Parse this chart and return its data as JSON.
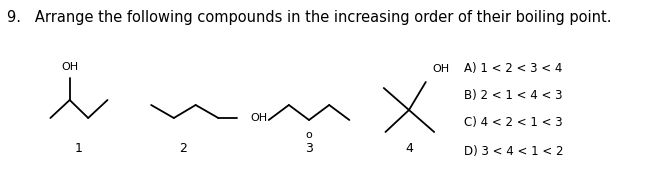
{
  "title": "9.   Arrange the following compounds in the increasing order of their boiling point.",
  "title_fontsize": 10.5,
  "bg_color": "#ffffff",
  "answer_options": [
    "A) 1 < 2 < 3 < 4",
    "B) 2 < 1 < 4 < 3",
    "C) 4 < 2 < 1 < 3",
    "D) 3 < 4 < 1 < 2"
  ],
  "compound_labels": [
    "1",
    "2",
    "3",
    "4"
  ],
  "lw": 1.3,
  "fs_label": 9,
  "fs_oh": 8,
  "color": "#000000"
}
